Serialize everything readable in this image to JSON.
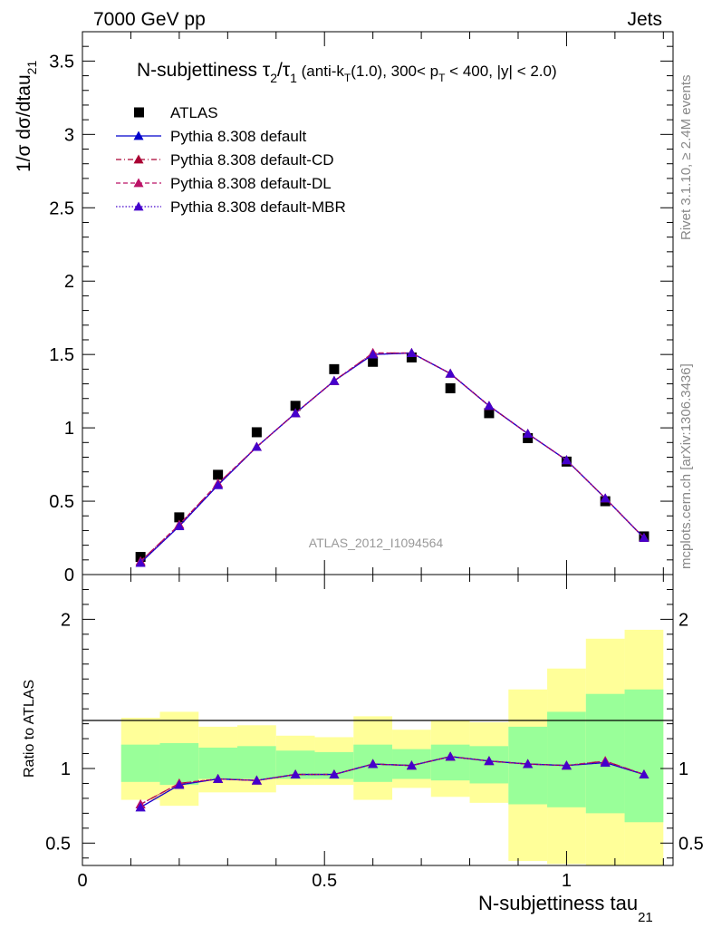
{
  "header": {
    "left": "7000 GeV pp",
    "right": "Jets"
  },
  "side_text": {
    "rivet": "Rivet 3.1.10, ≥ 2.4M events",
    "mcplots": "mcplots.cern.ch [arXiv:1306.3436]"
  },
  "analysis_id": "ATLAS_2012_I1094564",
  "colors": {
    "atlas": "#000000",
    "default": "#0000cc",
    "cd": "#aa0033",
    "dl": "#bb1166",
    "mbr": "#4400cc",
    "band_green": "#99ff99",
    "band_yellow": "#ffff99"
  },
  "chart_data": [
    {
      "type": "scatter",
      "panel": "main",
      "title_main": "N-subjettiness τ",
      "title_sub2": "2",
      "title_slash": "/τ",
      "title_sub1": "1",
      "title_rest_a": " (anti-k",
      "title_sub_t": "T",
      "title_rest_b": "(1.0), 300< p",
      "title_sub_t2": "T",
      "title_rest_c": " < 400, |y| < 2.0)",
      "ylabel": "1/σ dσ/dtau",
      "ylabel_sub": "21",
      "xlim": [
        0,
        1.22
      ],
      "ylim": [
        0,
        3.7
      ],
      "yticks": [
        0,
        0.5,
        1,
        1.5,
        2,
        2.5,
        3,
        3.5
      ],
      "ytick_labels": [
        "0",
        "0.5",
        "1",
        "1.5",
        "2",
        "2.5",
        "3",
        "3.5"
      ],
      "x": [
        0.12,
        0.2,
        0.28,
        0.36,
        0.44,
        0.52,
        0.6,
        0.68,
        0.76,
        0.84,
        0.92,
        1.0,
        1.08,
        1.16
      ],
      "series": [
        {
          "name": "ATLAS",
          "style": "marker-square",
          "values": [
            0.12,
            0.39,
            0.68,
            0.97,
            1.15,
            1.4,
            1.45,
            1.48,
            1.27,
            1.1,
            0.93,
            0.77,
            0.5,
            0.26
          ]
        },
        {
          "name": "Pythia 8.308 default",
          "style": "solid",
          "values": [
            0.08,
            0.33,
            0.61,
            0.87,
            1.1,
            1.32,
            1.5,
            1.51,
            1.37,
            1.15,
            0.96,
            0.78,
            0.52,
            0.25
          ]
        },
        {
          "name": "Pythia 8.308 default-CD",
          "style": "dashdot",
          "values": [
            0.09,
            0.34,
            0.62,
            0.87,
            1.1,
            1.32,
            1.51,
            1.51,
            1.37,
            1.15,
            0.96,
            0.78,
            0.52,
            0.25
          ]
        },
        {
          "name": "Pythia 8.308 default-DL",
          "style": "dashed",
          "values": [
            0.09,
            0.34,
            0.62,
            0.87,
            1.1,
            1.32,
            1.51,
            1.51,
            1.37,
            1.15,
            0.96,
            0.78,
            0.52,
            0.25
          ]
        },
        {
          "name": "Pythia 8.308 default-MBR",
          "style": "dotted",
          "values": [
            0.08,
            0.33,
            0.61,
            0.87,
            1.1,
            1.32,
            1.5,
            1.51,
            1.37,
            1.15,
            0.96,
            0.78,
            0.52,
            0.25
          ]
        }
      ]
    },
    {
      "type": "line",
      "panel": "ratio",
      "ylabel": "Ratio to ATLAS",
      "xlabel": "N-subjettiness tau",
      "xlabel_sub": "21",
      "xlim": [
        0,
        1.22
      ],
      "ylim": [
        0.35,
        2.3
      ],
      "xticks": [
        0,
        0.5,
        1
      ],
      "xtick_labels": [
        "0",
        "0.5",
        "1"
      ],
      "yticks": [
        0.5,
        1,
        2
      ],
      "ytick_labels": [
        "0.5",
        "1",
        "2"
      ],
      "bin_edges": [
        0.08,
        0.16,
        0.24,
        0.32,
        0.4,
        0.48,
        0.56,
        0.64,
        0.72,
        0.8,
        0.88,
        0.96,
        1.04,
        1.12,
        1.2
      ],
      "band_green_lo": [
        0.91,
        0.89,
        0.93,
        0.93,
        0.93,
        0.93,
        0.91,
        0.93,
        0.92,
        0.9,
        0.76,
        0.74,
        0.7,
        0.64
      ],
      "band_green_hi": [
        1.16,
        1.17,
        1.14,
        1.15,
        1.12,
        1.11,
        1.16,
        1.13,
        1.16,
        1.15,
        1.28,
        1.38,
        1.5,
        1.53
      ],
      "band_yellow_lo": [
        0.79,
        0.75,
        0.84,
        0.84,
        0.89,
        0.89,
        0.79,
        0.87,
        0.81,
        0.77,
        0.38,
        0.36,
        0.33,
        0.33
      ],
      "band_yellow_hi": [
        1.34,
        1.38,
        1.28,
        1.29,
        1.22,
        1.21,
        1.35,
        1.26,
        1.32,
        1.31,
        1.53,
        1.67,
        1.87,
        1.93
      ],
      "x": [
        0.12,
        0.2,
        0.28,
        0.36,
        0.44,
        0.52,
        0.6,
        0.68,
        0.76,
        0.84,
        0.92,
        1.0,
        1.08,
        1.16
      ],
      "series": [
        {
          "name": "Pythia 8.308 default",
          "style": "solid",
          "values": [
            0.74,
            0.89,
            0.93,
            0.92,
            0.96,
            0.96,
            1.03,
            1.02,
            1.08,
            1.05,
            1.03,
            1.02,
            1.04,
            0.96
          ]
        },
        {
          "name": "Pythia 8.308 default-CD",
          "style": "dashdot",
          "values": [
            0.76,
            0.9,
            0.93,
            0.92,
            0.96,
            0.96,
            1.03,
            1.02,
            1.08,
            1.05,
            1.03,
            1.02,
            1.05,
            0.96
          ]
        },
        {
          "name": "Pythia 8.308 default-DL",
          "style": "dashed",
          "values": [
            0.76,
            0.9,
            0.93,
            0.92,
            0.96,
            0.96,
            1.03,
            1.02,
            1.08,
            1.05,
            1.03,
            1.02,
            1.05,
            0.96
          ]
        },
        {
          "name": "Pythia 8.308 default-MBR",
          "style": "dotted",
          "values": [
            0.74,
            0.89,
            0.93,
            0.92,
            0.96,
            0.96,
            1.03,
            1.02,
            1.08,
            1.05,
            1.03,
            1.02,
            1.04,
            0.96
          ]
        }
      ]
    }
  ]
}
